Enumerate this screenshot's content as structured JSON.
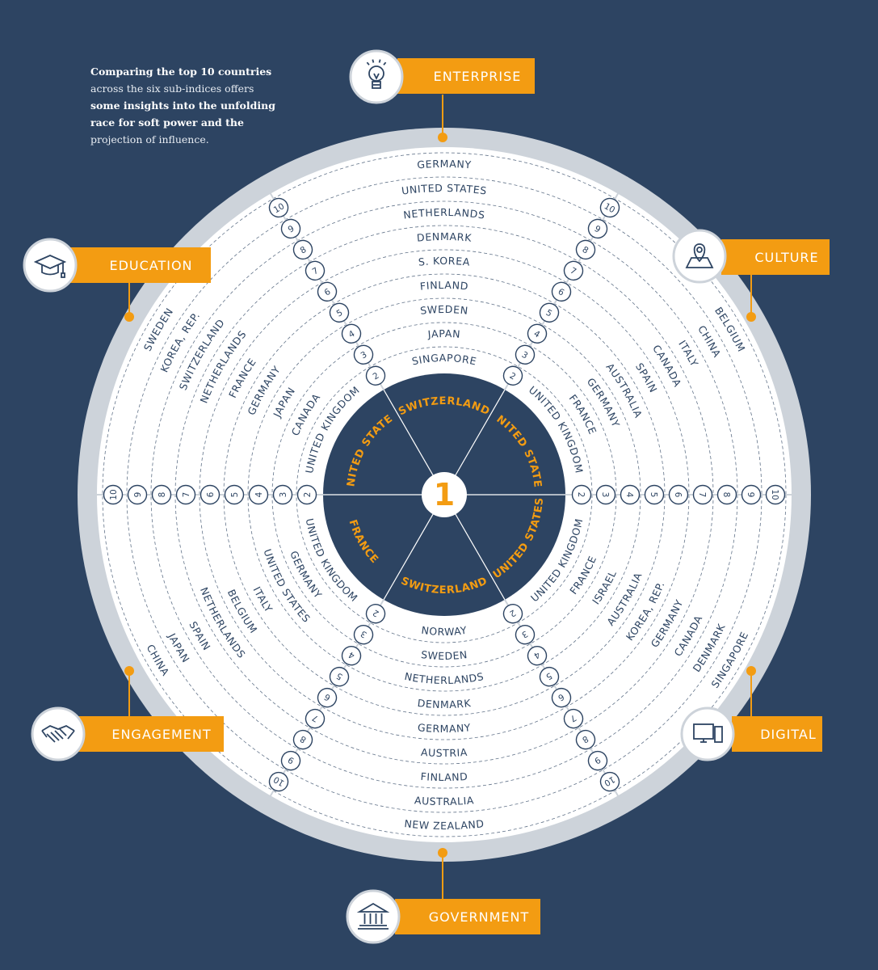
{
  "intro": {
    "line1": "Comparing the top 10 countries",
    "line2": "across the six sub-indices offers",
    "line3": "some insights into the unfolding",
    "line4": "race for soft power and the",
    "line5": "projection of influence."
  },
  "center_label": "1",
  "colors": {
    "background": "#2d4462",
    "accent": "#f39c12",
    "ring": "#ffffff",
    "outer_ring": "#cdd3da"
  },
  "sectors": [
    {
      "name": "ENTERPRISE",
      "icon": "lightbulb-icon",
      "countries": [
        "SWITZERLAND",
        "SINGAPORE",
        "JAPAN",
        "SWEDEN",
        "FINLAND",
        "S. KOREA",
        "DENMARK",
        "NETHERLANDS",
        "UNITED STATES",
        "GERMANY"
      ]
    },
    {
      "name": "CULTURE",
      "icon": "map-pin-icon",
      "countries": [
        "UNITED STATES",
        "UNITED KINGDOM",
        "FRANCE",
        "GERMANY",
        "AUSTRALIA",
        "SPAIN",
        "CANADA",
        "ITALY",
        "CHINA",
        "BELGIUM"
      ]
    },
    {
      "name": "DIGITAL",
      "icon": "devices-icon",
      "countries": [
        "UNITED STATES",
        "UNITED KINGDOM",
        "FRANCE",
        "ISRAEL",
        "AUSTRALIA",
        "KOREA, REP.",
        "GERMANY",
        "CANADA",
        "DENMARK",
        "SINGAPORE"
      ]
    },
    {
      "name": "GOVERNMENT",
      "icon": "building-icon",
      "countries": [
        "SWITZERLAND",
        "NORWAY",
        "SWEDEN",
        "NETHERLANDS",
        "DENMARK",
        "GERMANY",
        "AUSTRIA",
        "FINLAND",
        "AUSTRALIA",
        "NEW ZEALAND"
      ]
    },
    {
      "name": "ENGAGEMENT",
      "icon": "handshake-icon",
      "countries": [
        "FRANCE",
        "UNITED KINGDOM",
        "GERMANY",
        "UNITED STATES",
        "ITALY",
        "BELGIUM",
        "NETHERLANDS",
        "SPAIN",
        "JAPAN",
        "CHINA"
      ]
    },
    {
      "name": "EDUCATION",
      "icon": "graduation-cap-icon",
      "countries": [
        "UNITED STATES",
        "UNITED KINGDOM",
        "CANADA",
        "JAPAN",
        "GERMANY",
        "FRANCE",
        "NETHERLANDS",
        "SWITZERLAND",
        "KOREA, REP.",
        "SWEDEN"
      ]
    }
  ],
  "ranks": [
    "2",
    "3",
    "4",
    "5",
    "6",
    "7",
    "8",
    "9",
    "10"
  ]
}
